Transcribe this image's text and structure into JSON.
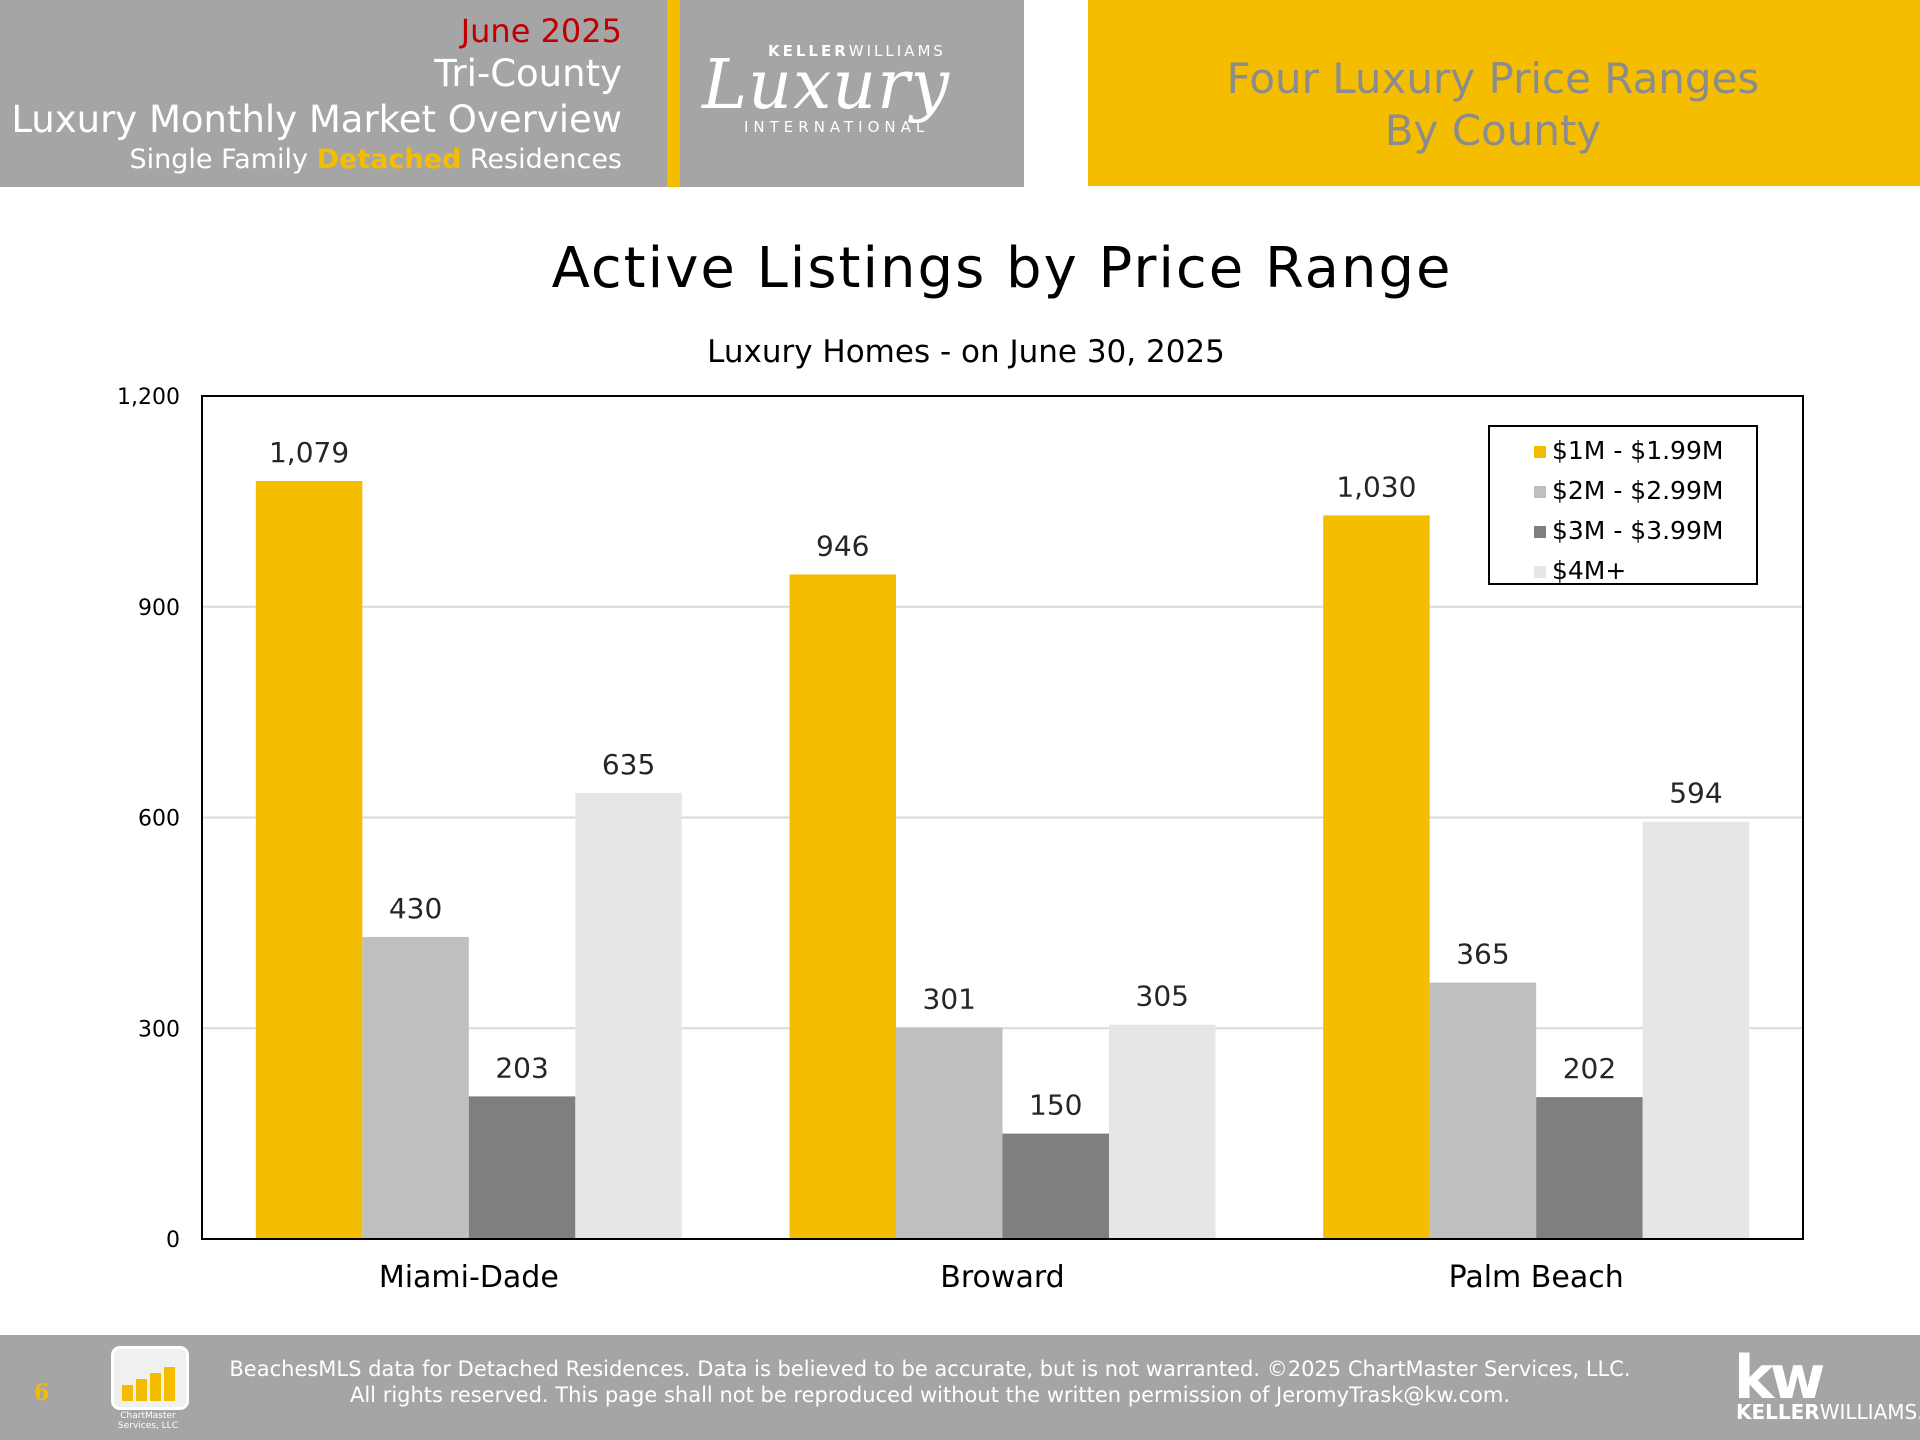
{
  "header": {
    "month": "June 2025",
    "region": "Tri-County",
    "overview": "Luxury Monthly Market Overview",
    "subtitle_pre": "Single Family ",
    "subtitle_highlight": "Detached",
    "subtitle_post": " Residences",
    "logo_top_a": "KELLER",
    "logo_top_b": "WILLIAMS",
    "logo_script": "Luxury",
    "logo_bottom": "INTERNATIONAL",
    "right_title_line1": "Four Luxury Price Ranges",
    "right_title_line2": "By County"
  },
  "colors": {
    "gold": "#f5bd00",
    "header_gray": "#a5a5a5",
    "month_red": "#c00000"
  },
  "chart_data": {
    "type": "bar",
    "title": "Active Listings by Price Range",
    "subtitle": "Luxury Homes - on June 30, 2025",
    "categories": [
      "Miami-Dade",
      "Broward",
      "Palm Beach"
    ],
    "series": [
      {
        "name": "$1M - $1.99M",
        "color": "#f5bd00",
        "values": [
          1079,
          946,
          1030
        ],
        "labels": [
          "1,079",
          "946",
          "1,030"
        ]
      },
      {
        "name": "$2M - $2.99M",
        "color": "#bfbfbf",
        "values": [
          430,
          301,
          365
        ],
        "labels": [
          "430",
          "301",
          "365"
        ]
      },
      {
        "name": "$3M - $3.99M",
        "color": "#7f7f7f",
        "values": [
          203,
          150,
          202
        ],
        "labels": [
          "203",
          "150",
          "202"
        ]
      },
      {
        "name": "$4M+",
        "color": "#e6e6e6",
        "values": [
          635,
          305,
          594
        ],
        "labels": [
          "635",
          "305",
          "594"
        ]
      }
    ],
    "ylim": [
      0,
      1200
    ],
    "yticks": [
      0,
      300,
      600,
      900,
      1200
    ],
    "ytick_labels": [
      "0",
      "300",
      "600",
      "900",
      "1,200"
    ],
    "grid": true,
    "legend": "top-right"
  },
  "footer": {
    "page": "6",
    "logo_text_line1": "ChartMaster",
    "logo_text_line2": "Services, LLC",
    "line1": "BeachesMLS data for Detached Residences.  Data is believed to be accurate, but is not warranted.   ©2025  ChartMaster Services, LLC.",
    "line2": "All rights reserved. This page shall not be reproduced without the written permission of JeromyTrask@kw.com.",
    "kw": "kw",
    "kw_a": "KELLER",
    "kw_b": "WILLIAMS."
  }
}
